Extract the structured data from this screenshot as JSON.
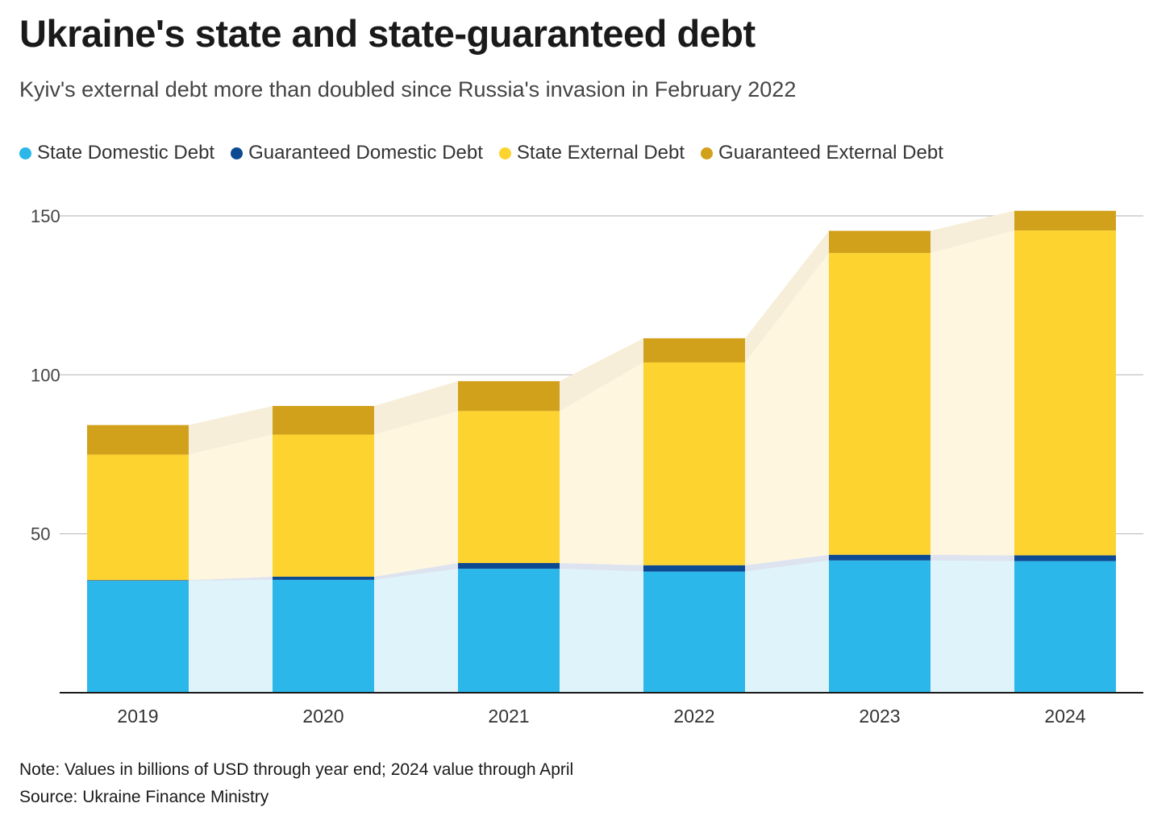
{
  "header": {
    "title": "Ukraine's state and state-guaranteed debt",
    "subtitle": "Kyiv's external debt more than doubled since Russia's invasion in February 2022"
  },
  "footer": {
    "note": "Note: Values in billions of USD through year end; 2024 value through April",
    "source": "Source: Ukraine Finance Ministry"
  },
  "chart_data": {
    "type": "bar",
    "stacked": true,
    "title": "Ukraine's state and state-guaranteed debt",
    "subtitle": "Kyiv's external debt more than doubled since Russia's invasion in February 2022",
    "categories": [
      "2019",
      "2020",
      "2021",
      "2022",
      "2023",
      "2024"
    ],
    "series": [
      {
        "name": "State Domestic Debt",
        "color": "#2bb7ea",
        "band_color": "#dff3fa",
        "values": [
          35.2,
          35.5,
          39.0,
          38.1,
          41.6,
          41.4
        ]
      },
      {
        "name": "Guaranteed Domestic Debt",
        "color": "#0d4a91",
        "band_color": "#dde3ef",
        "values": [
          0.2,
          1.0,
          1.8,
          2.0,
          1.8,
          1.8
        ]
      },
      {
        "name": "State External Debt",
        "color": "#fdd330",
        "band_color": "#fef6df",
        "values": [
          39.5,
          44.7,
          47.8,
          63.8,
          94.9,
          102.2
        ]
      },
      {
        "name": "Guaranteed External Debt",
        "color": "#d2a11b",
        "band_color": "#f6eed8",
        "values": [
          9.3,
          9.0,
          9.4,
          7.6,
          7.0,
          6.2
        ]
      }
    ],
    "yticks": [
      50,
      100,
      150
    ],
    "ylim": [
      0,
      150
    ],
    "grid": true,
    "legend_position": "top-left"
  }
}
